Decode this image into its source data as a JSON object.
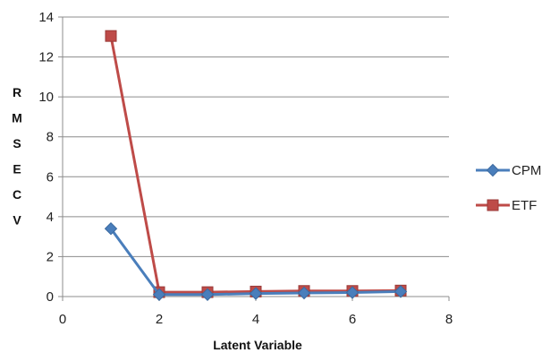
{
  "chart_data": {
    "type": "line",
    "xlabel": "Latent Variable",
    "ylabel": "RMSECV",
    "xlim": [
      0,
      8
    ],
    "ylim": [
      0,
      14
    ],
    "xticks": [
      0,
      2,
      4,
      6,
      8
    ],
    "yticks": [
      0,
      2,
      4,
      6,
      8,
      10,
      12,
      14
    ],
    "grid": "horizontal",
    "legend_position": "right",
    "series": [
      {
        "name": "CPM",
        "color": "#4a7ebb",
        "marker": "diamond",
        "x": [
          1,
          2,
          3,
          4,
          5,
          6,
          7
        ],
        "y": [
          3.4,
          0.1,
          0.1,
          0.15,
          0.18,
          0.2,
          0.25
        ]
      },
      {
        "name": "ETF",
        "color": "#be4b48",
        "marker": "square",
        "x": [
          1,
          2,
          3,
          4,
          5,
          6,
          7
        ],
        "y": [
          13.05,
          0.22,
          0.22,
          0.25,
          0.28,
          0.28,
          0.3
        ]
      }
    ]
  }
}
